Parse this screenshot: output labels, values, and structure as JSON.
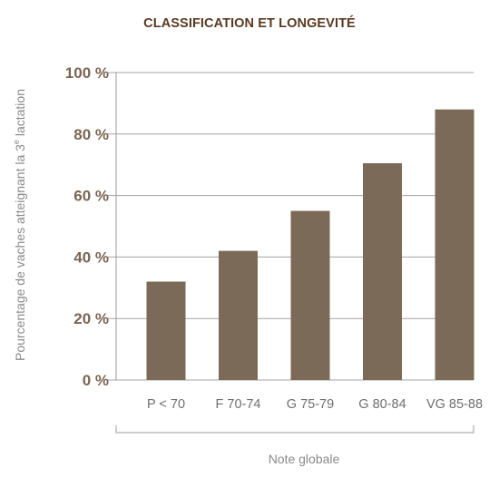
{
  "chart_data": {
    "type": "bar",
    "title": "CLASSIFICATION ET LONGEVITÉ",
    "xlabel": "Note globale",
    "ylabel": "Pourcentage de vaches atteignant la 3e lactation",
    "categories": [
      "P < 70",
      "F 70-74",
      "G 75-79",
      "G 80-84",
      "VG 85-88"
    ],
    "values": [
      32,
      42,
      55,
      70.5,
      88
    ],
    "ylim": [
      0,
      100
    ],
    "yticks": [
      0,
      20,
      40,
      60,
      80,
      100
    ],
    "ytick_labels": [
      "0 %",
      "20 %",
      "40 %",
      "60 %",
      "80 %",
      "100 %"
    ],
    "grid": true,
    "bar_color": "#7c6a58"
  }
}
